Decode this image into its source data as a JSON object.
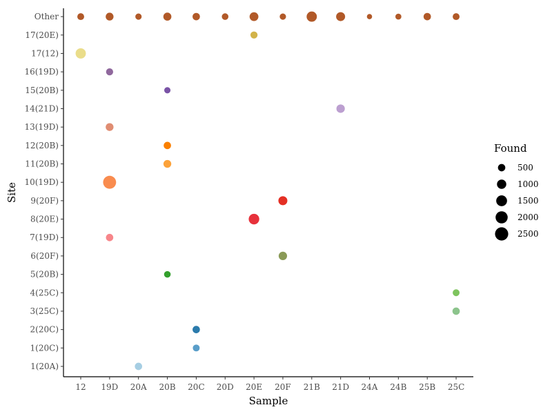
{
  "chart_data": {
    "type": "scatter",
    "title": "",
    "xlabel": "Sample",
    "ylabel": "Site",
    "x_categories": [
      "12",
      "19D",
      "20A",
      "20B",
      "20C",
      "20D",
      "20E",
      "20F",
      "21B",
      "21D",
      "24A",
      "24B",
      "25B",
      "25C"
    ],
    "y_categories": [
      "1(20A)",
      "1(20C)",
      "2(20C)",
      "3(25C)",
      "4(25C)",
      "5(20B)",
      "6(20F)",
      "7(19D)",
      "8(20E)",
      "9(20F)",
      "10(19D)",
      "11(20B)",
      "12(20B)",
      "13(19D)",
      "14(21D)",
      "15(20B)",
      "16(19D)",
      "17(12)",
      "17(20E)",
      "Other"
    ],
    "size_legend": {
      "title": "Found",
      "values": [
        500,
        1000,
        1500,
        2000,
        2500
      ],
      "labels": [
        "500",
        "1000",
        "1500",
        "2000",
        "2500"
      ]
    },
    "grid": false,
    "legend_position": "right",
    "points": [
      {
        "x": "20A",
        "y": "1(20A)",
        "size": 500,
        "color": "#a6cee3"
      },
      {
        "x": "20C",
        "y": "1(20C)",
        "size": 400,
        "color": "#5a9ec9"
      },
      {
        "x": "20C",
        "y": "2(20C)",
        "size": 500,
        "color": "#2b7bac"
      },
      {
        "x": "25C",
        "y": "3(25C)",
        "size": 500,
        "color": "#8cc48c"
      },
      {
        "x": "25C",
        "y": "4(25C)",
        "size": 400,
        "color": "#7ec45e"
      },
      {
        "x": "20B",
        "y": "5(20B)",
        "size": 350,
        "color": "#33a02c"
      },
      {
        "x": "20F",
        "y": "6(20F)",
        "size": 750,
        "color": "#8a9a57"
      },
      {
        "x": "19D",
        "y": "7(19D)",
        "size": 500,
        "color": "#f7868a"
      },
      {
        "x": "20E",
        "y": "8(20E)",
        "size": 1400,
        "color": "#e7313b"
      },
      {
        "x": "20F",
        "y": "9(20F)",
        "size": 900,
        "color": "#e42f24"
      },
      {
        "x": "19D",
        "y": "10(19D)",
        "size": 2400,
        "color": "#f98c4f"
      },
      {
        "x": "20B",
        "y": "11(20B)",
        "size": 600,
        "color": "#fca23a"
      },
      {
        "x": "20B",
        "y": "12(20B)",
        "size": 500,
        "color": "#fa8000"
      },
      {
        "x": "19D",
        "y": "13(19D)",
        "size": 600,
        "color": "#e08d72"
      },
      {
        "x": "21D",
        "y": "14(21D)",
        "size": 750,
        "color": "#bc9fd0"
      },
      {
        "x": "20B",
        "y": "15(20B)",
        "size": 300,
        "color": "#7a53a6"
      },
      {
        "x": "19D",
        "y": "16(19D)",
        "size": 450,
        "color": "#90689d"
      },
      {
        "x": "12",
        "y": "17(12)",
        "size": 1300,
        "color": "#eadd8a"
      },
      {
        "x": "20E",
        "y": "17(20E)",
        "size": 450,
        "color": "#d2b349"
      },
      {
        "x": "12",
        "y": "Other",
        "size": 400,
        "color": "#b15928"
      },
      {
        "x": "19D",
        "y": "Other",
        "size": 600,
        "color": "#b15928"
      },
      {
        "x": "20A",
        "y": "Other",
        "size": 300,
        "color": "#b15928"
      },
      {
        "x": "20B",
        "y": "Other",
        "size": 650,
        "color": "#b15928"
      },
      {
        "x": "20C",
        "y": "Other",
        "size": 500,
        "color": "#b15928"
      },
      {
        "x": "20D",
        "y": "Other",
        "size": 350,
        "color": "#b15928"
      },
      {
        "x": "20E",
        "y": "Other",
        "size": 850,
        "color": "#b15928"
      },
      {
        "x": "20F",
        "y": "Other",
        "size": 300,
        "color": "#b15928"
      },
      {
        "x": "21B",
        "y": "Other",
        "size": 1300,
        "color": "#b15928"
      },
      {
        "x": "21D",
        "y": "Other",
        "size": 900,
        "color": "#b15928"
      },
      {
        "x": "24A",
        "y": "Other",
        "size": 150,
        "color": "#b15928"
      },
      {
        "x": "24B",
        "y": "Other",
        "size": 250,
        "color": "#b15928"
      },
      {
        "x": "25B",
        "y": "Other",
        "size": 500,
        "color": "#b15928"
      },
      {
        "x": "25C",
        "y": "Other",
        "size": 400,
        "color": "#b15928"
      }
    ]
  }
}
